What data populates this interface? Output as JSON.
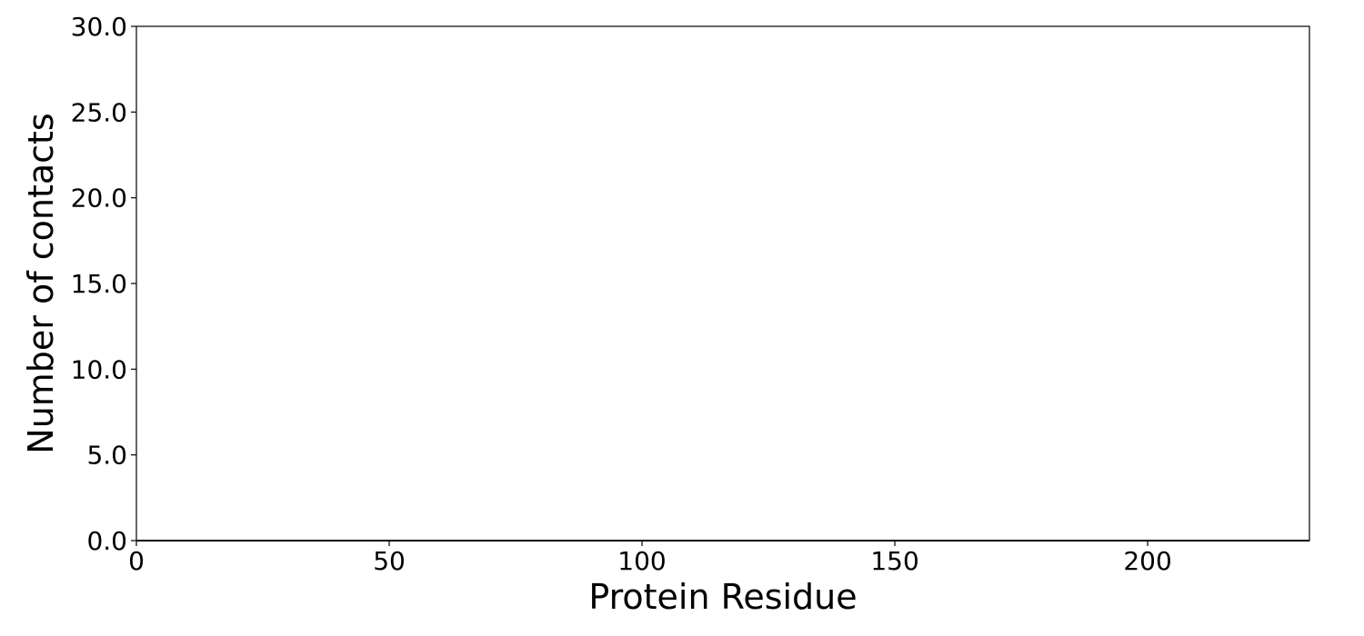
{
  "chart_data": {
    "type": "bar",
    "title": "",
    "xlabel": "Protein Residue",
    "ylabel": "Number of contacts",
    "xlim": [
      0,
      232
    ],
    "ylim": [
      0,
      30
    ],
    "x_ticks": [
      0,
      50,
      100,
      150,
      200
    ],
    "x_tick_labels": [
      "0",
      "50",
      "100",
      "150",
      "200"
    ],
    "y_ticks": [
      0,
      5,
      10,
      15,
      20,
      25,
      30
    ],
    "y_tick_labels": [
      "0.0",
      "5.0",
      "10.0",
      "15.0",
      "20.0",
      "25.0",
      "30.0"
    ],
    "grid": false,
    "legend": "none",
    "series": [
      {
        "x": [],
        "values": []
      }
    ],
    "colors": {
      "axes": "#000000",
      "background": "#ffffff"
    }
  }
}
